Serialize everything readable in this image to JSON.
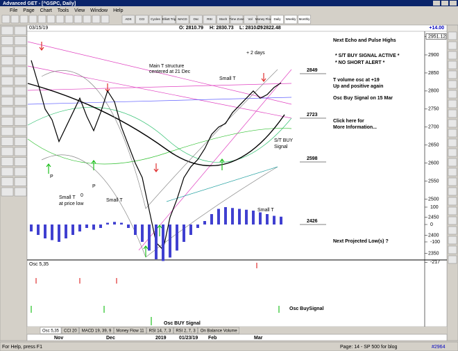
{
  "window": {
    "title": "Advanced GET - [^GSPC, Daily]"
  },
  "menu": [
    "File",
    "Page",
    "Chart",
    "Tools",
    "View",
    "Window",
    "Help"
  ],
  "toolbar": [
    "ADX",
    "CCI",
    "Cycles",
    "Elliott Trig",
    "MACD",
    "Osc",
    "RSI",
    "Stoch",
    "Time Zone",
    "Vol",
    "Money Flow",
    "Daily",
    "Weekly",
    "Monthly"
  ],
  "header": {
    "date": "03/15/19",
    "open": "O: 2810.79",
    "high": "H: 2830.73",
    "low": "L: 2810.79",
    "close": "C: 2822.48",
    "change": "+14.00"
  },
  "annotations": {
    "days": "+ 2 days",
    "main_t_1": "Main T structure",
    "main_t_2": "centered at 21 Dec",
    "small_t_a": "Small T",
    "small_t_b": "Small T",
    "small_t_c": "Small T",
    "small_t_low_1": "Small T",
    "small_t_low_2": "at price low",
    "p1": "P",
    "p2": "P",
    "zero": "0",
    "buy_1": "S/T BUY",
    "buy_2": "Signal",
    "level_1": "2849",
    "level_2": "2723",
    "level_3": "2598",
    "level_4": "2426",
    "note_1": "Next Echo and Pulse Highs",
    "note_2": "* S/T BUY SIGNAL ACTIVE *",
    "note_3": "* NO SHORT ALERT *",
    "note_4": "T volume osc at +19",
    "note_5": "Up and positive again",
    "note_6": "Osc Buy Signal on 15 Mar",
    "note_7": "Click here for",
    "note_8": "More Information...",
    "note_9": "Next Projected Low(s) ?",
    "osc_buy_1": "Osc BUY Signal",
    "osc_buy_2": "Osc BuySignal"
  },
  "tabs": [
    "Osc 5,35",
    "CCI 20",
    "MACD 19, 39, 9",
    "Money Flow 11",
    "RSI 14, 7, 3",
    "RSI 2, 7, 3",
    "On Balance Volume"
  ],
  "time_axis": [
    "Nov",
    "Dec",
    "2019",
    "01/23/19",
    "Feb",
    "Mar"
  ],
  "status": {
    "help": "For Help, press F1",
    "page": "Page: 14 - SP 500 for blog",
    "count": "#2964"
  },
  "chart_data": [
    {
      "type": "line",
      "color": "#000000",
      "values": [
        2885,
        2820,
        2750,
        2720,
        2660,
        2700,
        2740,
        2780,
        2730,
        2690,
        2740,
        2800,
        2770,
        2700,
        2650,
        2600,
        2560,
        2470,
        2380,
        2360,
        2450,
        2500,
        2560,
        2590,
        2610,
        2640,
        2680,
        2700,
        2710,
        2740,
        2760,
        2780,
        2800,
        2780,
        2790,
        2810,
        2822.48
      ],
      "ylim": [
        2336,
        2962
      ],
      "yticks": [
        2951.12,
        2900,
        2850,
        2800,
        2750,
        2700,
        2650,
        2600,
        2550,
        2500,
        2450,
        2400,
        2350
      ]
    },
    {
      "type": "bar",
      "title": "Osc 5,35",
      "color": "#4040d0",
      "values": [
        -40,
        -60,
        -80,
        -90,
        -100,
        -80,
        -60,
        -40,
        -20,
        -30,
        -20,
        10,
        15,
        10,
        -20,
        -60,
        -100,
        -150,
        -200,
        -210,
        -190,
        -150,
        -100,
        -60,
        -20,
        20,
        60,
        90,
        100,
        95,
        90,
        85,
        80,
        70,
        60,
        50,
        45
      ],
      "ylim": [
        -230,
        130
      ],
      "yticks": [
        100,
        0,
        -100,
        -217
      ]
    }
  ]
}
